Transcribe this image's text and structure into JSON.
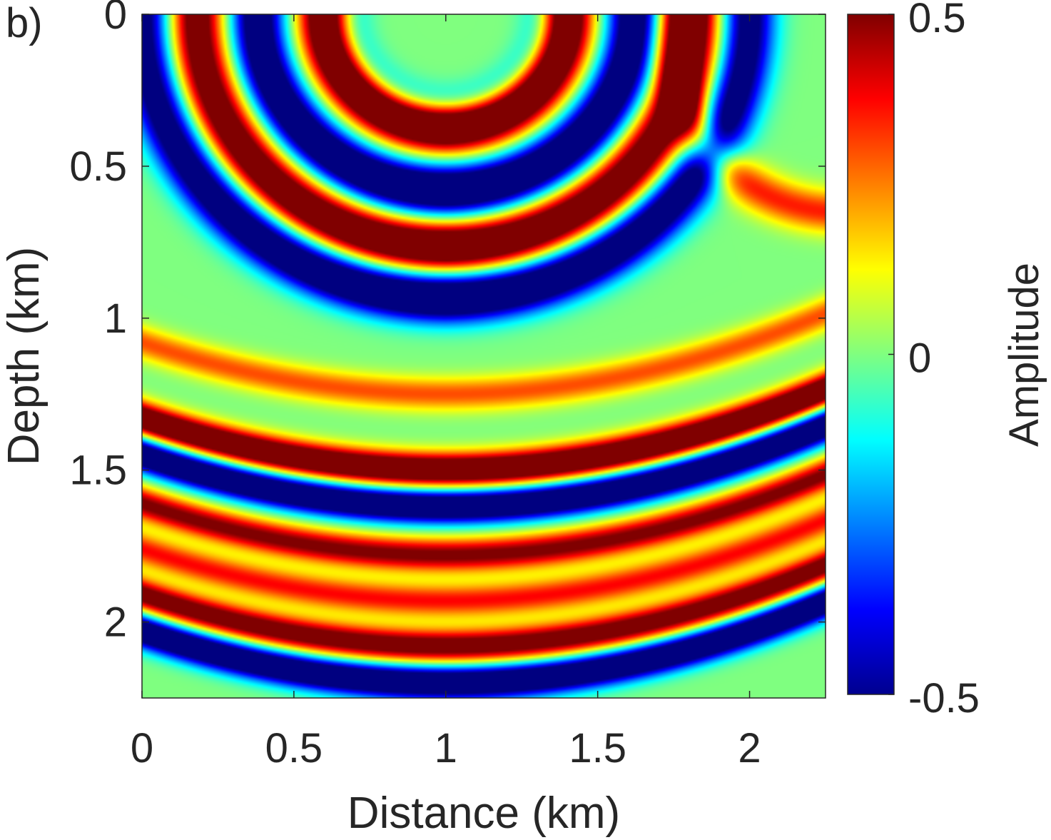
{
  "panel_label": "b)",
  "chart_data": {
    "type": "heatmap",
    "title": "",
    "xlabel": "Distance (km)",
    "ylabel": "Depth (km)",
    "xlim": [
      0,
      2.25
    ],
    "ylim": [
      0,
      2.25
    ],
    "y_reversed": true,
    "xticks": [
      0,
      0.5,
      1,
      1.5,
      2
    ],
    "xtick_labels": [
      "0",
      "0.5",
      "1",
      "1.5",
      "2"
    ],
    "yticks": [
      0,
      0.5,
      1,
      1.5,
      2
    ],
    "ytick_labels": [
      "0",
      "0.5",
      "1",
      "1.5",
      "2"
    ],
    "colormap": "jet",
    "clim": [
      -0.5,
      0.5
    ],
    "colorbar": {
      "label": "Amplitude",
      "ticks": [
        0.5,
        0,
        -0.5
      ],
      "tick_labels": [
        "0.5",
        "0",
        "-0.5"
      ]
    },
    "wavefield": {
      "description_of_pattern": "concentric wavefronts from a source near the top centre, with flat reflected events at depth",
      "source": {
        "x": 1.0,
        "z": 0.0
      },
      "direct_wave": {
        "radii": [
          0.4,
          0.62,
          0.82,
          1.0
        ],
        "amplitudes": [
          0.5,
          -0.5,
          0.5,
          -0.5
        ]
      },
      "reflected_events": [
        {
          "depth_at_center": 1.25,
          "amplitude": 0.2
        },
        {
          "depth_at_center": 1.5,
          "amplitude": 0.5
        },
        {
          "depth_at_center": 1.62,
          "amplitude": -0.5
        },
        {
          "depth_at_center": 1.78,
          "amplitude": 0.35
        },
        {
          "depth_at_center": 1.93,
          "amplitude": 0.25
        },
        {
          "depth_at_center": 2.08,
          "amplitude": 0.4
        },
        {
          "depth_at_center": 2.2,
          "amplitude": -0.5
        }
      ]
    }
  }
}
